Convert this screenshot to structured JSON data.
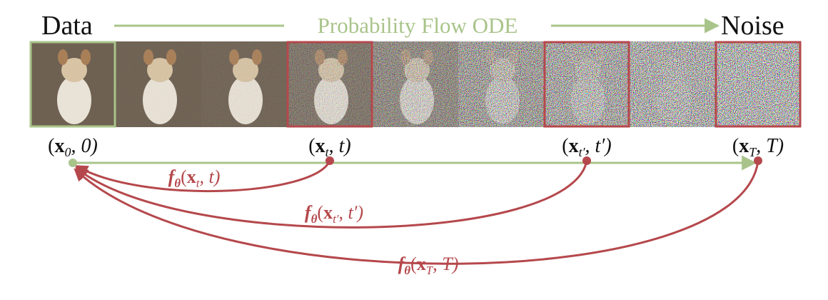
{
  "header": {
    "left": "Data",
    "middle": "Probability Flow ODE",
    "right": "Noise"
  },
  "points": [
    {
      "pre": "(",
      "var": "x",
      "sub": "0",
      "post": ", 0)"
    },
    {
      "pre": "(",
      "var": "x",
      "sub": "t",
      "post": ", t)"
    },
    {
      "pre": "(",
      "var": "x",
      "sub": "t′",
      "post": ", t′)"
    },
    {
      "pre": "(",
      "var": "x",
      "sub": "T",
      "post": ", T)"
    }
  ],
  "mappings": [
    {
      "f": "f",
      "f_sub": "θ",
      "pre": "(",
      "var": "x",
      "sub": "t",
      "post": ", t)"
    },
    {
      "f": "f",
      "f_sub": "θ",
      "pre": "(",
      "var": "x",
      "sub": "t′",
      "post": ", t′)"
    },
    {
      "f": "f",
      "f_sub": "θ",
      "pre": "(",
      "var": "x",
      "sub": "T",
      "post": ", T)"
    }
  ]
}
